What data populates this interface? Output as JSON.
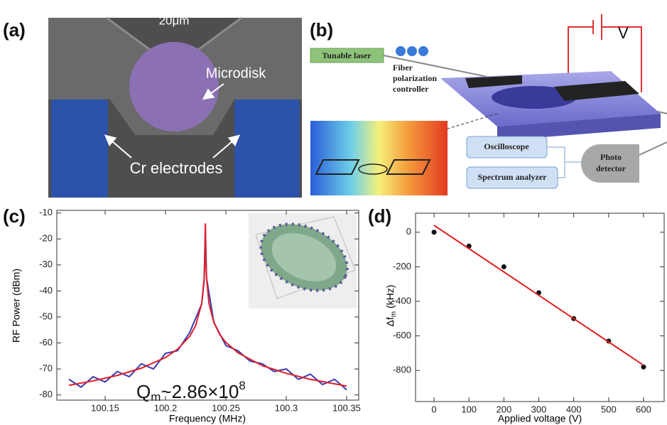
{
  "panel_a": {
    "label": "(a)",
    "scale_bar": "20μm",
    "microdisk": "Microdisk",
    "electrodes": "Cr electrodes"
  },
  "panel_b": {
    "label": "(b)",
    "laser": "Tunable laser",
    "controller": [
      "Fiber",
      "polarization",
      "controller"
    ],
    "voltage": "V",
    "oscilloscope": "Oscilloscope",
    "analyzer": "Spectrum analyzer",
    "detector": [
      "Photo",
      "detector"
    ]
  },
  "chart_data": [
    {
      "type": "line",
      "panel_label": "(c)",
      "x_label": "Frequency (MHz)",
      "y_label": "RF Power (dBm)",
      "annotation": {
        "text": "Q",
        "sub": "m",
        "mid": "~2.86×10",
        "sup": "8"
      },
      "xlim": [
        100.11,
        100.36
      ],
      "ylim": [
        -82,
        -9
      ],
      "xticks": [
        100.15,
        100.2,
        100.25,
        100.3,
        100.35
      ],
      "yticks": [
        -80,
        -70,
        -60,
        -50,
        -40,
        -30,
        -20,
        -10
      ],
      "series": [
        {
          "color": "#3b3bb0",
          "x": [
            100.12,
            100.13,
            100.14,
            100.15,
            100.16,
            100.17,
            100.18,
            100.19,
            100.2,
            100.21,
            100.22,
            100.23,
            100.232,
            100.233,
            100.234,
            100.24,
            100.25,
            100.26,
            100.27,
            100.28,
            100.29,
            100.3,
            100.31,
            100.32,
            100.33,
            100.34,
            100.35
          ],
          "values": [
            -74,
            -77,
            -73,
            -75,
            -71,
            -73,
            -68,
            -70,
            -64,
            -63,
            -56,
            -45,
            -36,
            -15,
            -35,
            -52,
            -61,
            -63,
            -67,
            -68,
            -71,
            -70,
            -74,
            -72,
            -76,
            -74,
            -78
          ]
        },
        {
          "color": "#e0202a",
          "x": [
            100.12,
            100.14,
            100.16,
            100.18,
            100.2,
            100.21,
            100.22,
            100.225,
            100.23,
            100.232,
            100.2325,
            100.233,
            100.2335,
            100.234,
            100.236,
            100.24,
            100.245,
            100.25,
            100.26,
            100.28,
            100.3,
            100.32,
            100.35
          ],
          "values": [
            -76.3,
            -74.6,
            -72.5,
            -69.7,
            -65.6,
            -62.4,
            -57.5,
            -53.3,
            -44.8,
            -35.2,
            -29.3,
            -14,
            -29.3,
            -35.2,
            -44.8,
            -52.1,
            -56.8,
            -59.8,
            -63.8,
            -68.7,
            -71.7,
            -74,
            -76.6
          ]
        }
      ]
    },
    {
      "type": "scatter",
      "panel_label": "(d)",
      "x_label": "Applied voltage (V)",
      "y_label": {
        "text": "Δf",
        "sub": "m",
        "rest": " (kHz)"
      },
      "xlim": [
        -53,
        659
      ],
      "ylim": [
        -980,
        110
      ],
      "xticks": [
        0,
        100,
        200,
        300,
        400,
        500,
        600
      ],
      "yticks": [
        -800,
        -600,
        -400,
        -200,
        0
      ],
      "series": [
        {
          "style": "markers",
          "color": "#111111",
          "x": [
            0,
            100,
            200,
            300,
            400,
            500,
            600
          ],
          "values": [
            0,
            -80,
            -200,
            -350,
            -500,
            -630,
            -780
          ]
        },
        {
          "style": "line",
          "color": "#e02020",
          "x": [
            0,
            600
          ],
          "values": [
            40,
            -770
          ]
        }
      ]
    }
  ]
}
